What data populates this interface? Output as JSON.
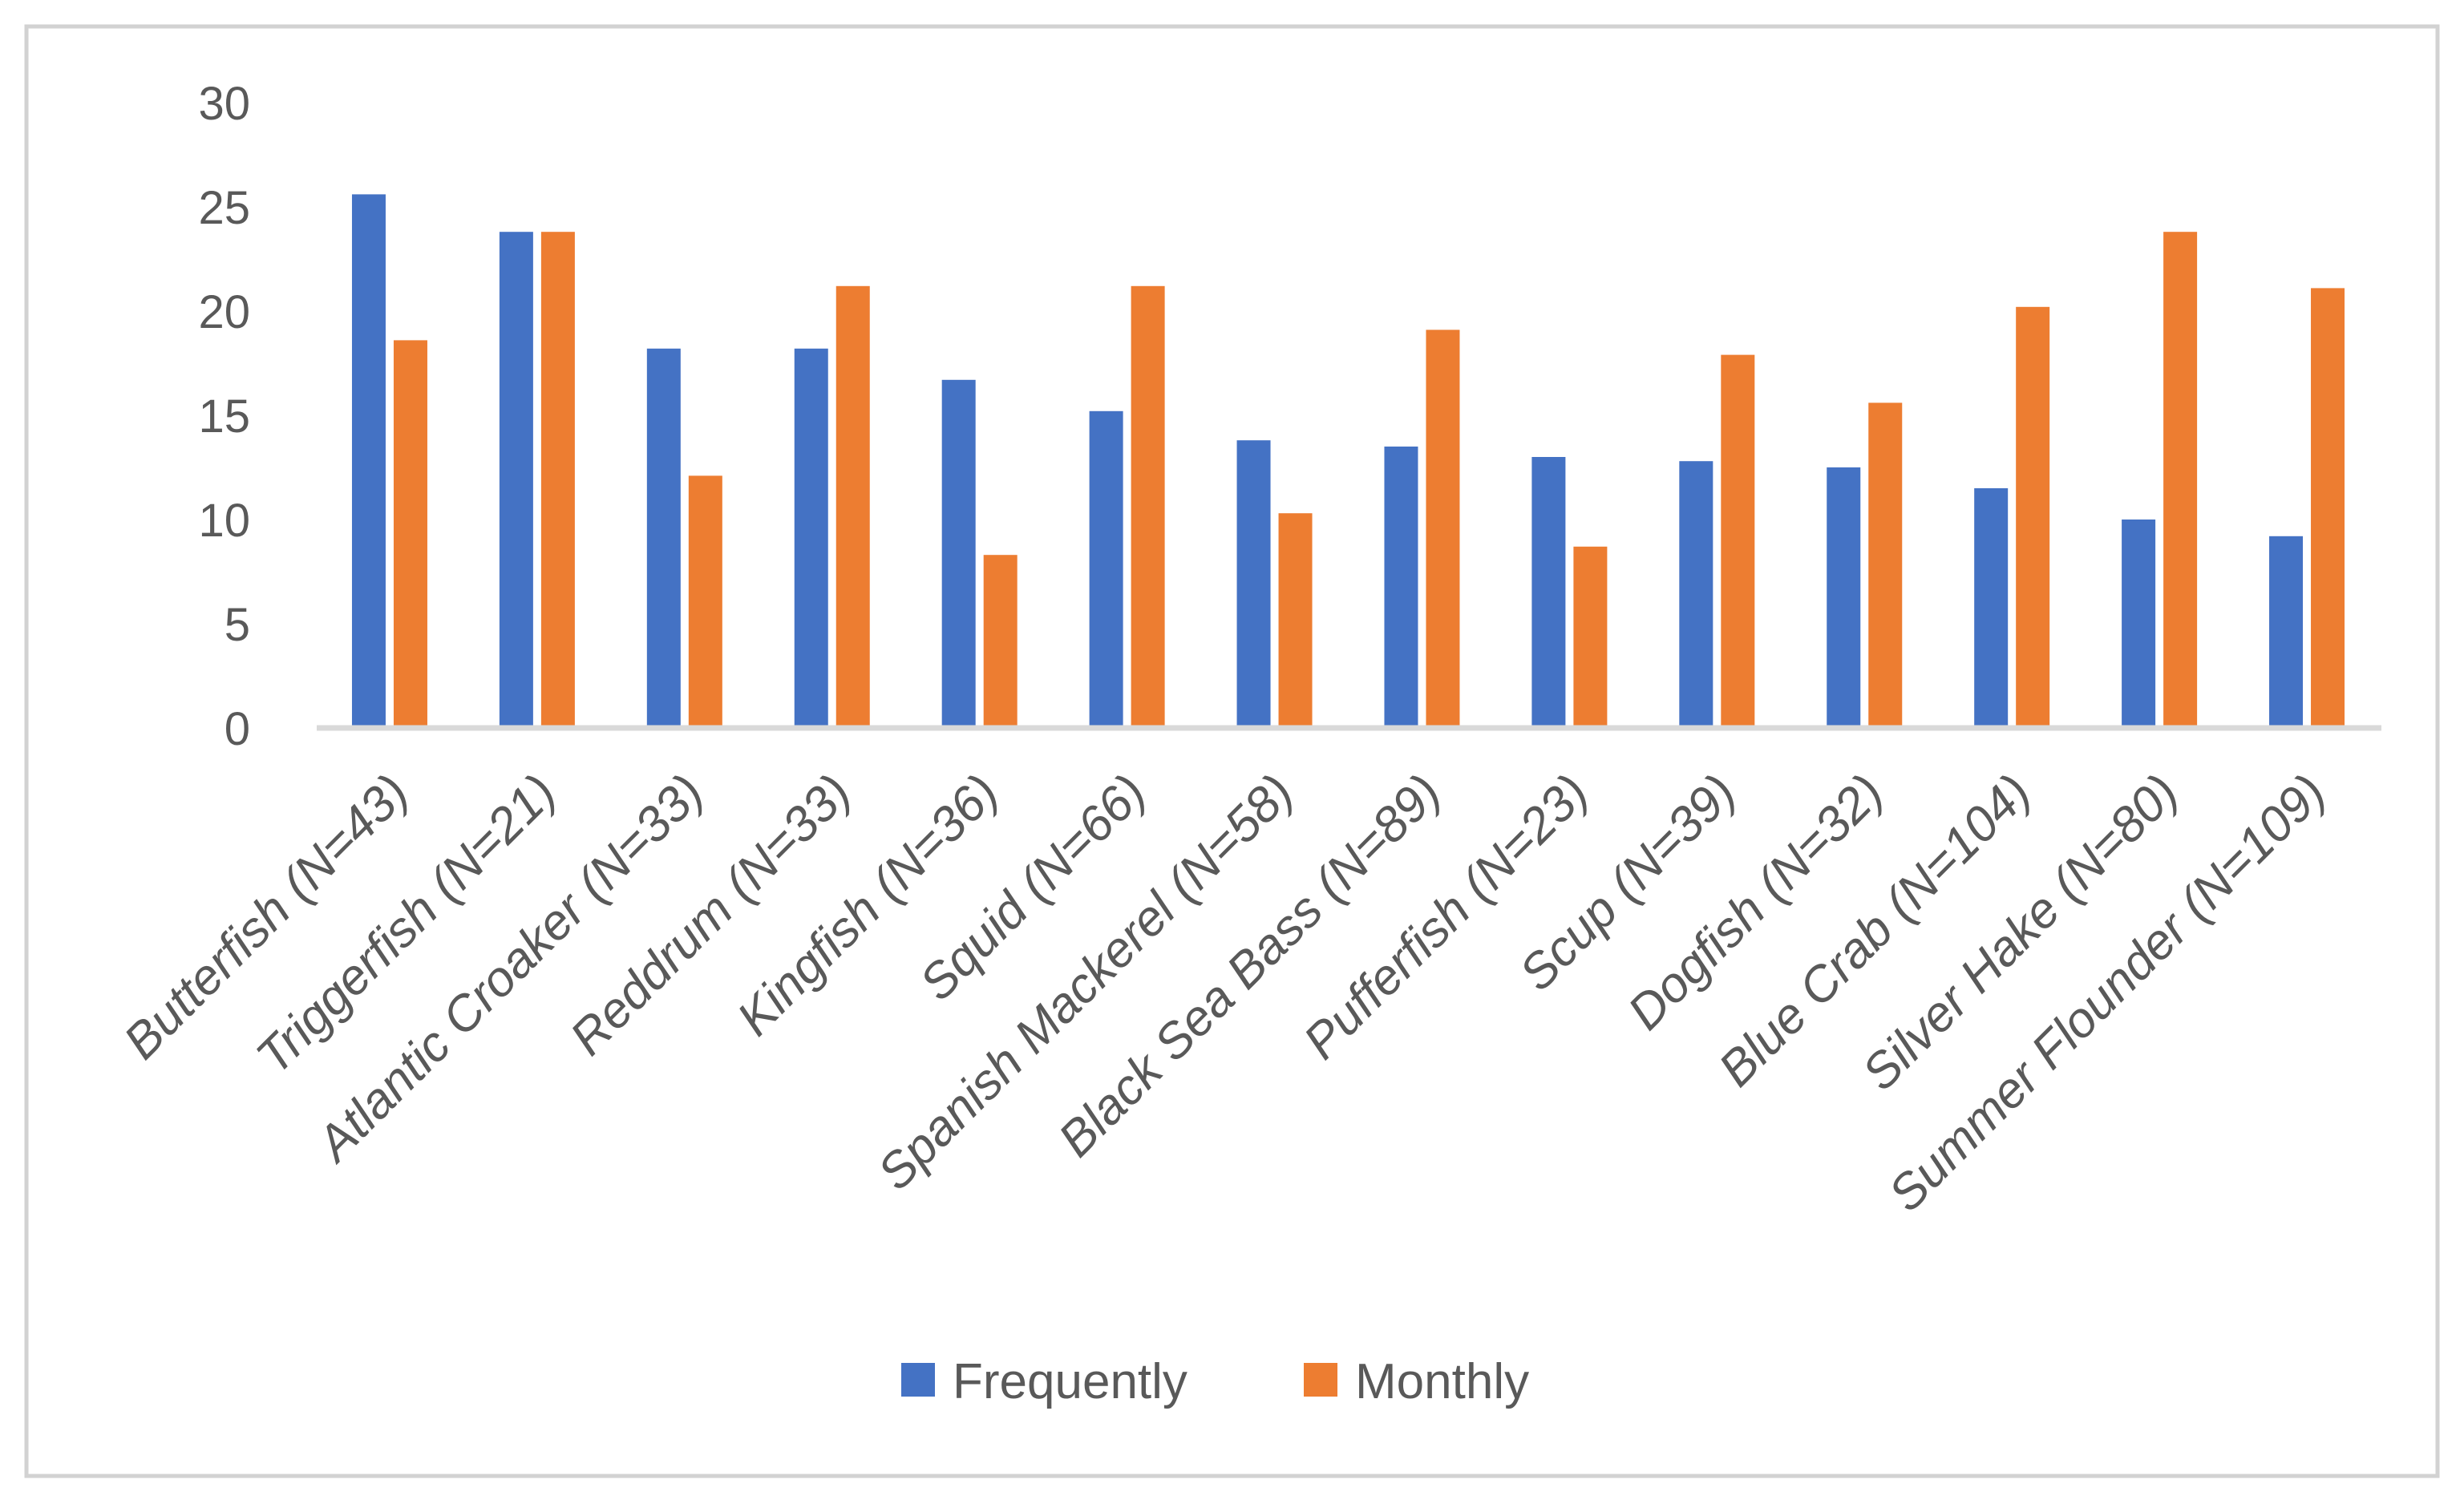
{
  "figure": {
    "background_color": "#FFFFFF",
    "border_color": "#D2D2D2"
  },
  "chart_data": {
    "type": "bar",
    "categories": [
      "Butterfish (N=43)",
      "Triggerfish (N=21)",
      "Atlantic Croaker (N=33)",
      "Reddrum (N=33)",
      "Kingfish (N=36)",
      "Squid (N=66)",
      "Spanish Mackerel (N=58)",
      "Black Sea Bass (N=89)",
      "Pufferfish (N=23)",
      "Scup (N=39)",
      "Dogfish (N=32)",
      "Blue Crab (N=104)",
      "Silver Hake (N=80)",
      "Summer Flounder (N=109)"
    ],
    "series": [
      {
        "name": "Frequently",
        "color": "#4472C4",
        "values": [
          25.6,
          23.8,
          18.2,
          18.2,
          16.7,
          15.2,
          13.8,
          13.5,
          13.0,
          12.8,
          12.5,
          11.5,
          10.0,
          9.2
        ]
      },
      {
        "name": "Monthly",
        "color": "#ED7D31",
        "values": [
          18.6,
          23.8,
          12.1,
          21.2,
          8.3,
          21.2,
          10.3,
          19.1,
          8.7,
          17.9,
          15.6,
          20.2,
          23.8,
          21.1
        ]
      }
    ],
    "y_axis": {
      "min": 0,
      "max": 30,
      "step": 5,
      "ticks": [
        0,
        5,
        10,
        15,
        20,
        25,
        30
      ],
      "text_color": "#595959"
    },
    "x_axis": {
      "line_color": "#D9D9D9",
      "label_rotation_deg": -45,
      "text_color": "#595959"
    },
    "grid": false,
    "legend_position": "bottom"
  }
}
